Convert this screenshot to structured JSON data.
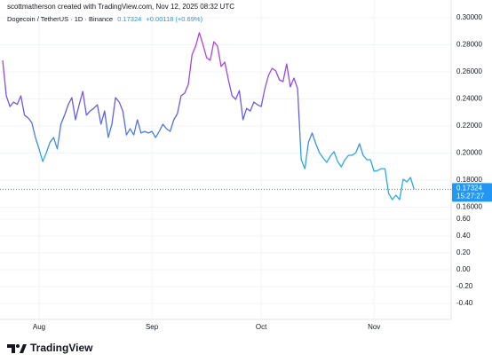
{
  "chart_data": {
    "type": "line",
    "header": "scottmatherson created with TradingView.com, Nov 12, 2025 08:32 UTC",
    "symbol": "Dogecoin / TetherUS · 1D · Binance",
    "change": "+0.00118 (+0.69%)",
    "countdown": "15:27:27",
    "brand": "TradingView",
    "categories": [
      null,
      null,
      null,
      null,
      null,
      null,
      null,
      null,
      null,
      null,
      "Aug",
      null,
      null,
      null,
      null,
      null,
      null,
      null,
      null,
      null,
      null,
      null,
      null,
      null,
      null,
      null,
      null,
      null,
      null,
      null,
      null,
      null,
      null,
      null,
      null,
      null,
      null,
      null,
      null,
      null,
      null,
      "Sep",
      null,
      null,
      null,
      null,
      null,
      null,
      null,
      null,
      null,
      null,
      null,
      null,
      null,
      null,
      null,
      null,
      null,
      null,
      null,
      null,
      null,
      null,
      null,
      null,
      null,
      null,
      null,
      null,
      null,
      "Oct",
      null,
      null,
      null,
      null,
      null,
      null,
      null,
      null,
      null,
      null,
      null,
      null,
      null,
      null,
      null,
      null,
      null,
      null,
      null,
      null,
      null,
      null,
      null,
      null,
      null,
      null,
      null,
      null,
      null,
      null,
      "Nov",
      null,
      null,
      null,
      null,
      null,
      null,
      null,
      null,
      null,
      null,
      null
    ],
    "values": [
      0.2685,
      0.2423,
      0.2344,
      0.2377,
      0.236,
      0.2423,
      0.228,
      0.226,
      0.2226,
      0.2115,
      0.203,
      0.1938,
      0.2003,
      0.208,
      0.2115,
      0.203,
      0.2213,
      0.228,
      0.2357,
      0.241,
      0.2246,
      0.2357,
      0.2456,
      0.228,
      0.2311,
      0.233,
      0.2357,
      0.2213,
      0.2311,
      0.2115,
      0.2213,
      0.241,
      0.2377,
      0.2311,
      0.2134,
      0.218,
      0.2134,
      0.2246,
      0.2148,
      0.216,
      0.2148,
      0.216,
      0.2115,
      0.216,
      0.2213,
      0.218,
      0.216,
      0.2246,
      0.2292,
      0.2423,
      0.2443,
      0.2508,
      0.2725,
      0.279,
      0.2889,
      0.2803,
      0.2705,
      0.2685,
      0.2823,
      0.279,
      0.264,
      0.2672,
      0.2541,
      0.2423,
      0.2397,
      0.2462,
      0.2246,
      0.233,
      0.2311,
      0.2377,
      0.2357,
      0.2344,
      0.2475,
      0.2574,
      0.2626,
      0.2607,
      0.2541,
      0.2528,
      0.2659,
      0.2489,
      0.2554,
      0.2475,
      0.1951,
      0.1885,
      0.2082,
      0.2148,
      0.2069,
      0.2003,
      0.1964,
      0.1931,
      0.1977,
      0.201,
      0.1938,
      0.1898,
      0.1951,
      0.1984,
      0.1984,
      0.2003,
      0.2069,
      0.1984,
      0.1951,
      0.1951,
      0.1866,
      0.1872,
      0.1885,
      0.1885,
      0.1702,
      0.1656,
      0.1689,
      0.1656,
      0.1807,
      0.1787,
      0.182,
      0.17324
    ],
    "color_stops": [
      "#b03ee6",
      "#5d5fe8",
      "#29a9e9"
    ],
    "price_color": "#2196f3",
    "ylim": [
      0.0771,
      0.3131
    ],
    "yticks": [
      {
        "value": 0.3,
        "label": "0.30000"
      },
      {
        "value": 0.28,
        "label": "0.28000"
      },
      {
        "value": 0.26,
        "label": "0.26000"
      },
      {
        "value": 0.24,
        "label": "0.24000"
      },
      {
        "value": 0.22,
        "label": "0.22000"
      },
      {
        "value": 0.2,
        "label": "0.20000"
      },
      {
        "value": 0.18,
        "label": "0.18000"
      },
      {
        "value": 0.16,
        "label": "0.16000"
      }
    ],
    "y2lim": [
      -0.5895,
      3.2
    ],
    "y2ticks": [
      {
        "value": 0.6,
        "label": "0.60"
      },
      {
        "value": 0.4,
        "label": "0.40"
      },
      {
        "value": 0.2,
        "label": "0.20"
      },
      {
        "value": 0,
        "label": "0.00"
      },
      {
        "value": -0.2,
        "label": "-0.20"
      },
      {
        "value": -0.4,
        "label": "-0.40"
      }
    ],
    "grid": true
  }
}
